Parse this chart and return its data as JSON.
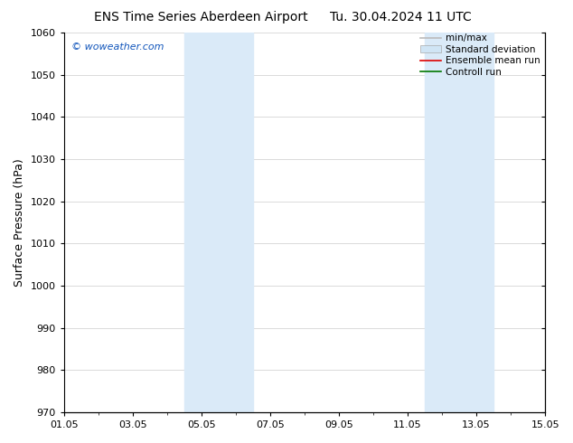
{
  "title": "ENS Time Series Aberdeen Airport",
  "title_right": "Tu. 30.04.2024 11 UTC",
  "ylabel": "Surface Pressure (hPa)",
  "ylim": [
    970,
    1060
  ],
  "yticks": [
    970,
    980,
    990,
    1000,
    1010,
    1020,
    1030,
    1040,
    1050,
    1060
  ],
  "xtick_labels": [
    "01.05",
    "03.05",
    "05.05",
    "07.05",
    "09.05",
    "11.05",
    "13.05",
    "15.05"
  ],
  "xtick_positions": [
    0,
    2,
    4,
    6,
    8,
    10,
    12,
    14
  ],
  "xlim": [
    0,
    14
  ],
  "shaded_bands": [
    {
      "x_start": 3.5,
      "x_end": 4.5
    },
    {
      "x_start": 4.5,
      "x_end": 5.5
    },
    {
      "x_start": 10.5,
      "x_end": 11.5
    },
    {
      "x_start": 11.5,
      "x_end": 12.5
    }
  ],
  "shaded_color": "#daeaf8",
  "watermark": "© woweather.com",
  "watermark_color": "#1155bb",
  "legend_entries": [
    {
      "label": "min/max",
      "color": "#bbbbbb",
      "lw": 1.2,
      "linestyle": "-",
      "type": "line"
    },
    {
      "label": "Standard deviation",
      "color": "#d0e5f5",
      "border_color": "#aaaaaa",
      "type": "patch"
    },
    {
      "label": "Ensemble mean run",
      "color": "#dd0000",
      "lw": 1.2,
      "linestyle": "-",
      "type": "line"
    },
    {
      "label": "Controll run",
      "color": "#007700",
      "lw": 1.2,
      "linestyle": "-",
      "type": "line"
    }
  ],
  "bg_color": "#ffffff",
  "grid_color": "#cccccc",
  "tick_font_size": 8,
  "ylabel_font_size": 9,
  "title_font_size": 10,
  "legend_font_size": 7.5,
  "watermark_font_size": 8
}
